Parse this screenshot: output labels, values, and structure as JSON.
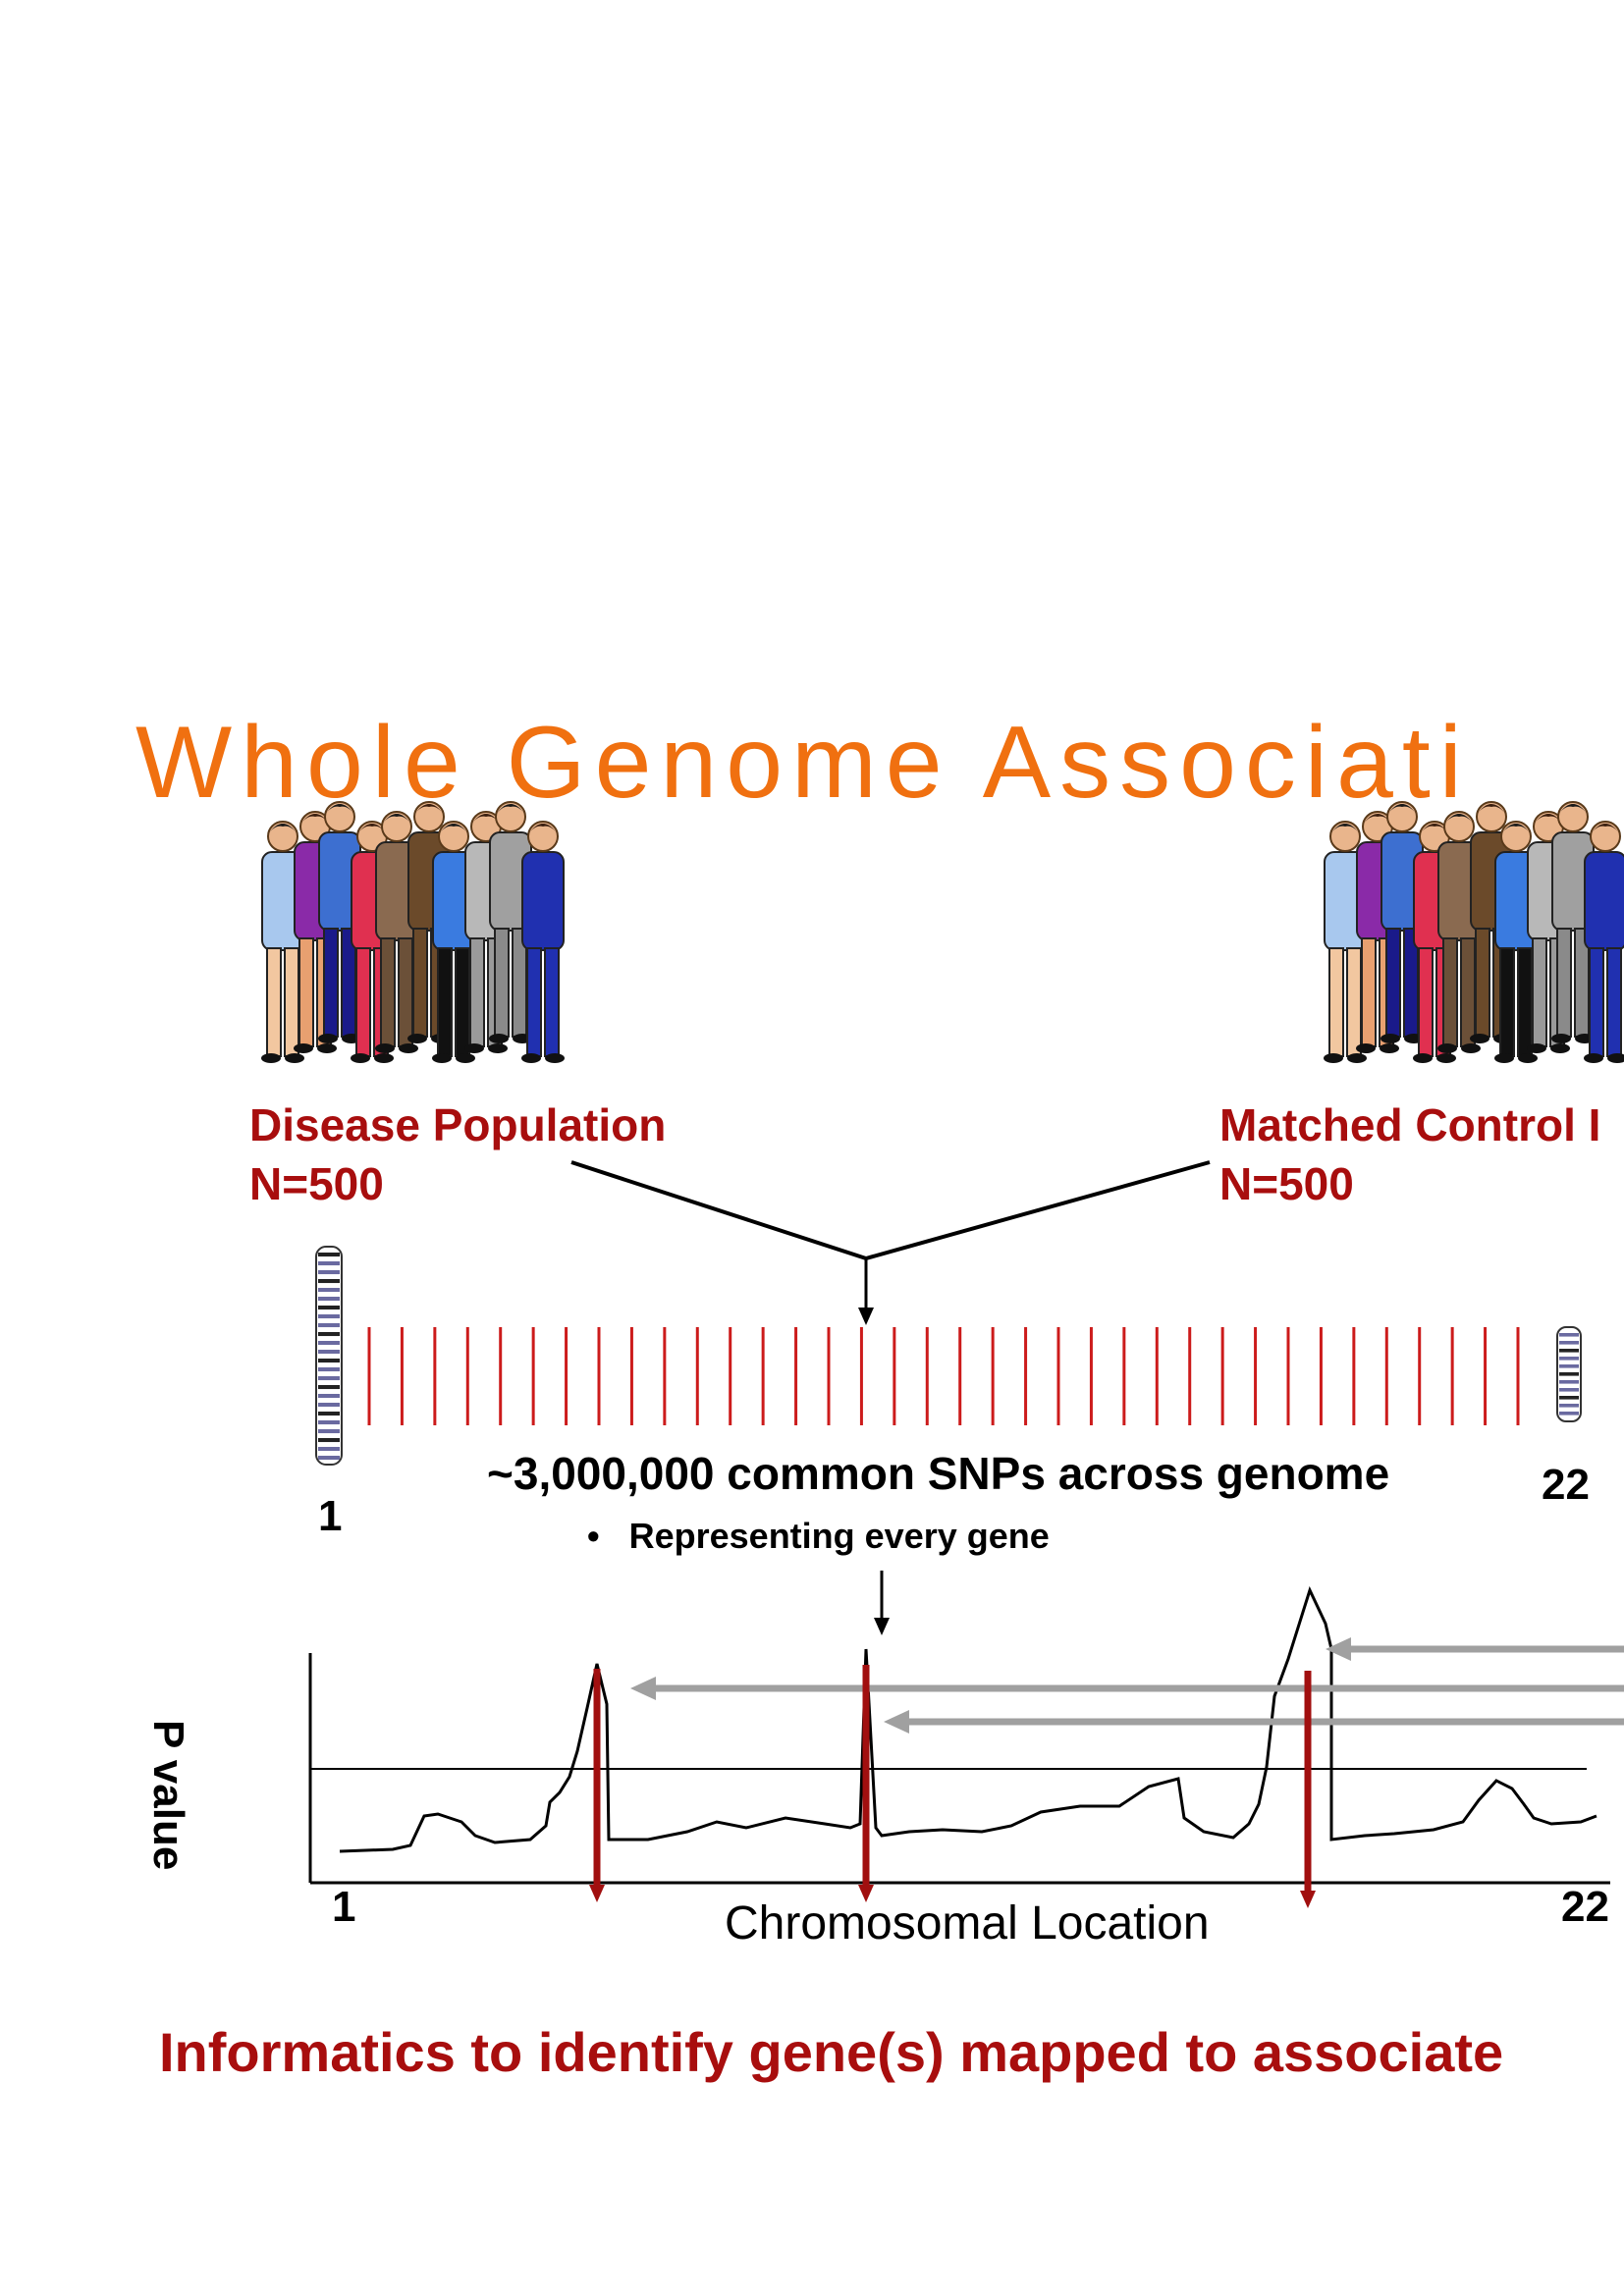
{
  "title": "Whole Genome Associati",
  "colors": {
    "title": "#f07010",
    "label": "#a80e0e",
    "snp": "#cc1b1b",
    "arrow_gray": "#a0a0a0",
    "peak_marker": "#a10f0f"
  },
  "populations": [
    {
      "label": "Disease Population",
      "n": "N=500",
      "icon": "crowd-figures"
    },
    {
      "label": "Matched Control I",
      "n": "N=500",
      "icon": "crowd-figures"
    }
  ],
  "snp": {
    "heading": "~3,000,000 common SNPs across genome",
    "bullet": "Representing every gene",
    "count_lines": 36,
    "chromosome_start": "1",
    "chromosome_end": "22"
  },
  "plot": {
    "ylabel": "P value",
    "xlabel": "Chromosomal Location",
    "x_start": "1",
    "x_end": "22"
  },
  "conclusion": "Informatics to identify gene(s) mapped to associate"
}
